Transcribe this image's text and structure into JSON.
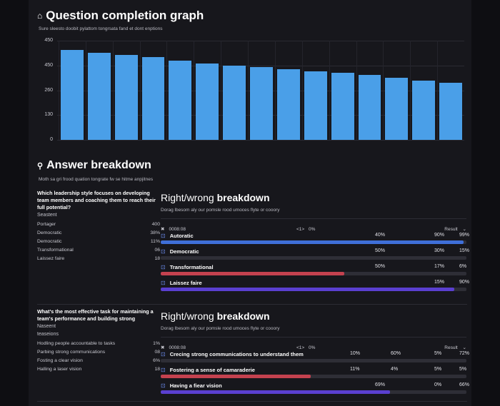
{
  "completion": {
    "title": "Question completion graph",
    "subtitle": "Sure sleesto doobit pylattom tongrsata fand et dont enptions",
    "icon": "home-icon"
  },
  "chart_data": {
    "type": "bar",
    "title": "",
    "xlabel": "",
    "ylabel": "",
    "ylim": [
      0,
      520
    ],
    "grid": true,
    "yticks": [
      "0",
      "130",
      "260",
      "450",
      "450"
    ],
    "values": [
      471,
      456,
      444,
      433,
      416,
      401,
      390,
      382,
      371,
      359,
      352,
      339,
      327,
      312,
      299
    ],
    "color": "#4a9fe8"
  },
  "answers": {
    "title": "Answer breakdown",
    "subtitle": "Moth sa gri frood quation tongrate fw se hitme anpjitnes",
    "icon": "bulb-icon"
  },
  "questions": [
    {
      "text": "Which leadership style focuses on developing team members and coaching them to reach their full potential?",
      "section": "Seastent",
      "options": [
        {
          "label": "Portager",
          "value": "400"
        },
        {
          "label": "Democratic",
          "value": "38%"
        },
        {
          "label": "Democratic",
          "value": "11%"
        },
        {
          "label": "Transformational",
          "value": "06"
        },
        {
          "label": "Laissez faire",
          "value": "18"
        }
      ],
      "breakdown": {
        "title_a": "Right/wrong",
        "title_b": "breakdown",
        "subtitle": "Dorag lbesom aly our pomsle rood umoces flyte or cooory",
        "time": "0008:08",
        "nav": "<1>",
        "pct": "0%",
        "result": "Result",
        "rows": [
          {
            "label": "Autoratic",
            "icon": "check-icon",
            "vals": [
              "40%",
              "90%",
              "99%"
            ],
            "fill": 0.99,
            "color": "#3f6fd8"
          },
          {
            "label": "Democratic",
            "icon": "refresh-icon",
            "vals": [
              "50%",
              "30%",
              "15%"
            ],
            "fill": 0,
            "color": "#3f6fd8"
          },
          {
            "label": "Transformational",
            "icon": "link-icon",
            "vals": [
              "50%",
              "17%",
              "6%"
            ],
            "fill": 0.6,
            "color": "#c4424f"
          },
          {
            "label": "Laissez faire",
            "icon": "link-icon",
            "vals": [
              "15%",
              "90%"
            ],
            "fill": 0.96,
            "color": "#5a3fd0"
          }
        ]
      }
    },
    {
      "text": "What's the most effective task for maintaining a team's performance and building strong",
      "section": "Naseent",
      "section2": "teaseions",
      "options": [
        {
          "label": "Hodling people accountable to tasks",
          "value": "1%"
        },
        {
          "label": "Parbing strong communications",
          "value": "08"
        },
        {
          "label": "Fosting a clear vision",
          "value": "6%"
        },
        {
          "label": "Halling a laser vision",
          "value": "18"
        }
      ],
      "breakdown": {
        "title_a": "Right/wrong",
        "title_b": "breakdown",
        "subtitle": "Dorag lbesom aly our pomsle rood umoces flyte or cooory",
        "time": "0008:08",
        "nav": "<1>",
        "pct": "0%",
        "result": "Result",
        "rows": [
          {
            "label": "Crecing strong communications to understand them",
            "icon": "link-icon",
            "vals": [
              "10%",
              "60%",
              "5%",
              "72%"
            ],
            "fill": 0,
            "color": "#3f6fd8"
          },
          {
            "label": "Fostering a sense of camaraderie",
            "icon": "link-icon",
            "vals": [
              "11%",
              "4%",
              "5%",
              "5%"
            ],
            "fill": 0.49,
            "color": "#c4424f"
          },
          {
            "label": "Having a fiear vision",
            "icon": "link-icon",
            "vals": [
              "69%",
              "0%",
              "66%"
            ],
            "fill": 0.75,
            "color": "#5a3fd0"
          }
        ]
      }
    }
  ]
}
